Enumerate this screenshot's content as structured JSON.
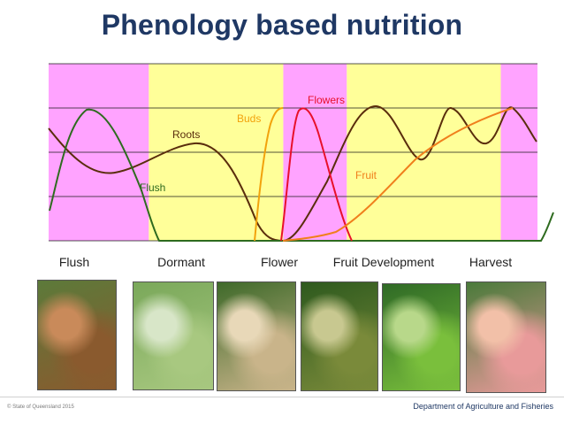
{
  "title": "Phenology based nutrition",
  "phase_bands": [
    {
      "phase": "flush",
      "color": "#ffa3ff",
      "start": 0.0,
      "end": 0.205
    },
    {
      "phase": "dormant",
      "color": "#ffff99",
      "start": 0.205,
      "end": 0.48
    },
    {
      "phase": "flower",
      "color": "#ffa3ff",
      "start": 0.48,
      "end": 0.61
    },
    {
      "phase": "fruit-development",
      "color": "#ffff99",
      "start": 0.61,
      "end": 0.925
    },
    {
      "phase": "harvest",
      "color": "#ffa3ff",
      "start": 0.925,
      "end": 1.0
    }
  ],
  "curves": [
    {
      "id": "flush",
      "label": "Flush",
      "color": "#2e6b1f"
    },
    {
      "id": "roots",
      "label": "Roots",
      "color": "#5a2d0c"
    },
    {
      "id": "buds",
      "label": "Buds",
      "color": "#f2a20c"
    },
    {
      "id": "flowers",
      "label": "Flowers",
      "color": "#e8102a"
    },
    {
      "id": "fruit",
      "label": "Fruit",
      "color": "#f07f1c"
    }
  ],
  "stage_labels": [
    {
      "text": "Flush"
    },
    {
      "text": "Dormant"
    },
    {
      "text": "Flower"
    },
    {
      "text": "Fruit Development"
    },
    {
      "text": "Harvest"
    }
  ],
  "photos": [
    {
      "name": "flush-photo",
      "colors": [
        "#5c7a3a",
        "#8a5a2e",
        "#c98a5a"
      ]
    },
    {
      "name": "dormant-photo",
      "colors": [
        "#7aa85a",
        "#a8c880",
        "#d8e6c8"
      ]
    },
    {
      "name": "flower-photo",
      "colors": [
        "#3f6a2a",
        "#c9b48a",
        "#e8d8b8"
      ]
    },
    {
      "name": "fruitset-photo",
      "colors": [
        "#2e5a1e",
        "#7a8a3a",
        "#c8c890"
      ]
    },
    {
      "name": "fruitdev-photo",
      "colors": [
        "#2f6a26",
        "#7abf3c",
        "#b8d88a"
      ]
    },
    {
      "name": "harvest-photo",
      "colors": [
        "#4a7a3a",
        "#e89a9a",
        "#f2c0a8"
      ]
    }
  ],
  "footer": {
    "left": "© State of Queensland 2015",
    "right": "Department of Agriculture and Fisheries"
  }
}
